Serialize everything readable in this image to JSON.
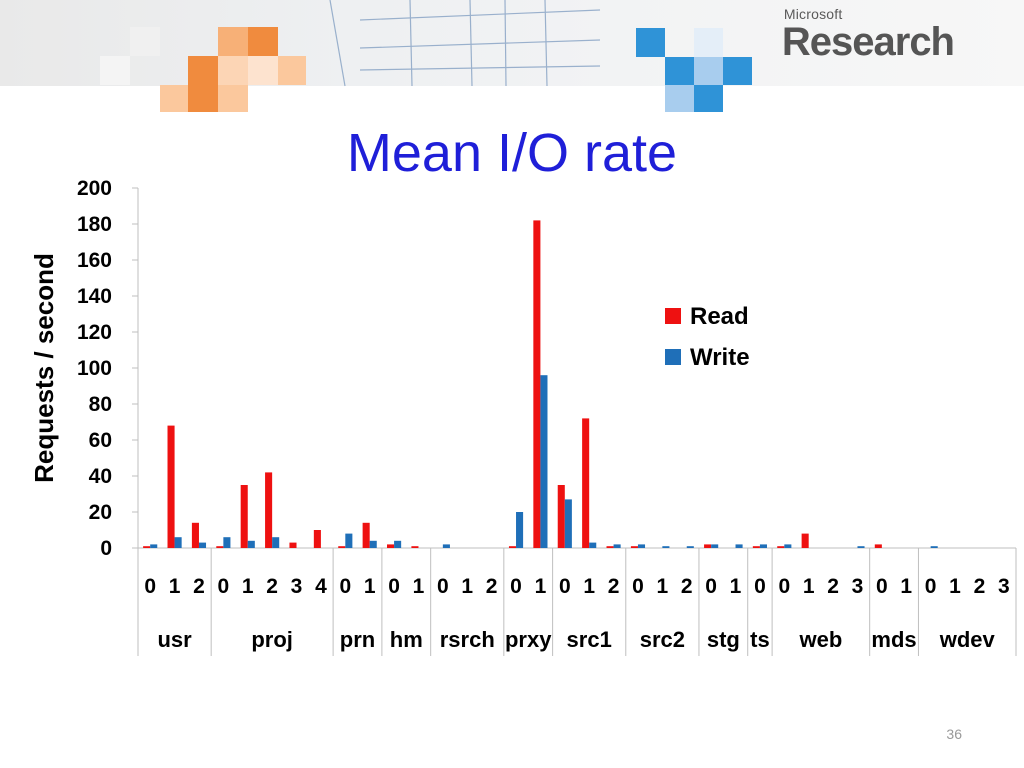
{
  "slide": {
    "title": "Mean I/O rate",
    "page_number": "36",
    "logo_small": "Microsoft",
    "logo_big": "Research"
  },
  "colors": {
    "read": "#ee1111",
    "write": "#1f6fb8",
    "title": "#1f1fd8"
  },
  "chart_data": {
    "type": "bar",
    "title": "Mean I/O rate",
    "xlabel": "",
    "ylabel": "Requests / second",
    "ylim": [
      0,
      200
    ],
    "yticks": [
      0,
      20,
      40,
      60,
      80,
      100,
      120,
      140,
      160,
      180,
      200
    ],
    "legend_position": "right",
    "grid": false,
    "groups": [
      {
        "name": "usr",
        "count": 3
      },
      {
        "name": "proj",
        "count": 5
      },
      {
        "name": "prn",
        "count": 2
      },
      {
        "name": "hm",
        "count": 2
      },
      {
        "name": "rsrch",
        "count": 3
      },
      {
        "name": "prxy",
        "count": 2
      },
      {
        "name": "src1",
        "count": 3
      },
      {
        "name": "src2",
        "count": 3
      },
      {
        "name": "stg",
        "count": 2
      },
      {
        "name": "ts",
        "count": 1
      },
      {
        "name": "web",
        "count": 4
      },
      {
        "name": "mds",
        "count": 2
      },
      {
        "name": "wdev",
        "count": 4
      }
    ],
    "categories": [
      "0",
      "1",
      "2",
      "0",
      "1",
      "2",
      "3",
      "4",
      "0",
      "1",
      "0",
      "1",
      "0",
      "1",
      "2",
      "0",
      "1",
      "0",
      "1",
      "2",
      "0",
      "1",
      "2",
      "0",
      "1",
      "0",
      "0",
      "1",
      "2",
      "3",
      "0",
      "1",
      "0",
      "1",
      "2",
      "3"
    ],
    "series": [
      {
        "name": "Read",
        "values": [
          1,
          68,
          14,
          1,
          35,
          42,
          3,
          10,
          1,
          14,
          2,
          1,
          0,
          0,
          0,
          1,
          182,
          35,
          72,
          1,
          1,
          0,
          0,
          2,
          0,
          1,
          1,
          8,
          0,
          0,
          2,
          0,
          0,
          0,
          0,
          0
        ]
      },
      {
        "name": "Write",
        "values": [
          2,
          6,
          3,
          6,
          4,
          6,
          0,
          0,
          8,
          4,
          4,
          0,
          2,
          0,
          0,
          20,
          96,
          27,
          3,
          2,
          2,
          1,
          1,
          2,
          2,
          2,
          2,
          0,
          0,
          1,
          0,
          0,
          1,
          0,
          0,
          0
        ]
      }
    ]
  }
}
